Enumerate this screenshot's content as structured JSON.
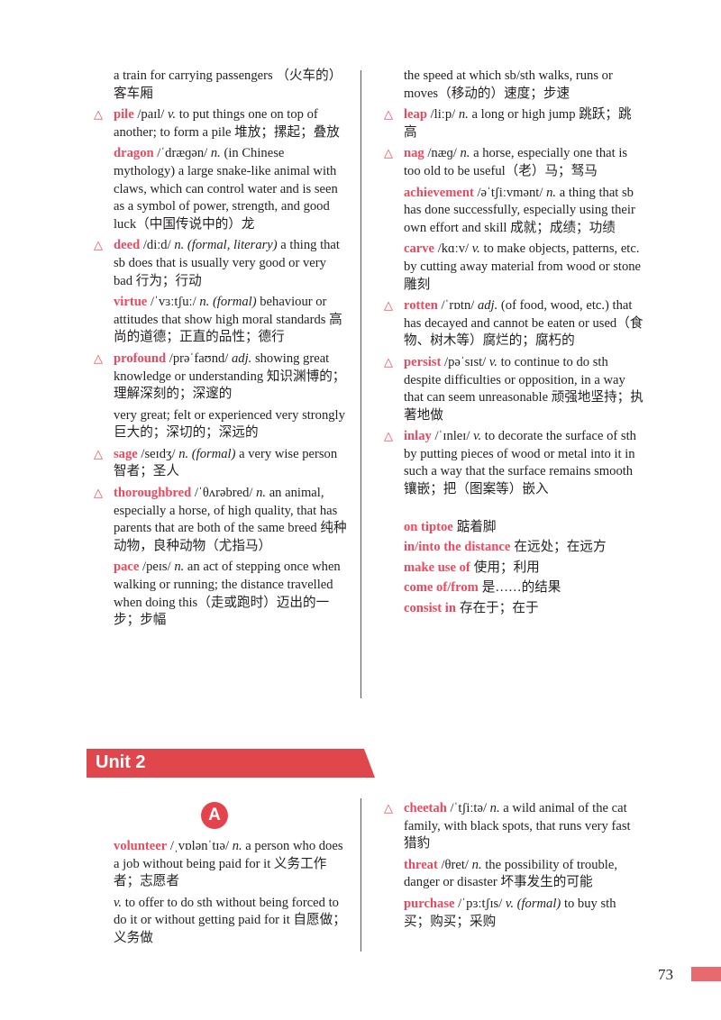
{
  "top_left": {
    "cont": "a train for carrying passengers （火车的）客车厢",
    "entries": [
      {
        "hw": "pile",
        "pron": "/paɪl/",
        "pos": "v.",
        "def": "to put things one on top of another; to form a pile 堆放；摞起；叠放"
      },
      {
        "hw": "dragon",
        "pron": "/ˈdræɡən/",
        "pos": "n.",
        "def": "(in Chinese mythology) a large snake-like animal with claws, which can control water and is seen as a symbol of power, strength, and good luck（中国传说中的）龙"
      },
      {
        "hw": "deed",
        "pron": "/diːd/",
        "pos": "n.",
        "reg": "(formal, literary)",
        "def": "a thing that sb does that is usually very good or very bad 行为；行动"
      },
      {
        "hw": "virtue",
        "pron": "/ˈvɜːtʃuː/",
        "pos": "n.",
        "reg": "(formal)",
        "def": "behaviour or attitudes that show high moral standards 高尚的道德；正直的品性；德行"
      },
      {
        "hw": "profound",
        "pron": "/prəˈfaʊnd/",
        "pos": "adj.",
        "def": "showing great knowledge or understanding 知识渊博的；理解深刻的；深邃的",
        "def2": "very great; felt or experienced very strongly 巨大的；深切的；深远的"
      },
      {
        "hw": "sage",
        "pron": "/seɪdʒ/",
        "pos": "n.",
        "reg": "(formal)",
        "def": "a very wise person 智者；圣人"
      },
      {
        "hw": "thoroughbred",
        "pron": "/ˈθʌrəbred/",
        "pos": "n.",
        "def": "an animal, especially a horse, of high quality, that has parents that are both of the same breed 纯种动物，良种动物（尤指马）"
      },
      {
        "hw": "pace",
        "pron": "/peɪs/",
        "pos": "n.",
        "def": "an act of stepping once when walking or running; the distance travelled when doing this（走或跑时）迈出的一步；步幅"
      }
    ]
  },
  "top_right": {
    "cont": "the speed at which sb/sth walks, runs or moves（移动的）速度；步速",
    "entries": [
      {
        "hw": "leap",
        "pron": "/liːp/",
        "pos": "n.",
        "def": "a long or high jump 跳跃；跳高"
      },
      {
        "hw": "nag",
        "pron": "/næɡ/",
        "pos": "n.",
        "def": "a horse, especially one that is too old to be useful（老）马；驽马"
      },
      {
        "hw": "achievement",
        "pron": "/əˈtʃiːvmənt/",
        "pos": "n.",
        "def": "a thing that sb has done successfully, especially using their own effort and skill 成就；成绩；功绩"
      },
      {
        "hw": "carve",
        "pron": "/kɑːv/",
        "pos": "v.",
        "def": "to make objects, patterns, etc. by cutting away material from wood or stone 雕刻"
      },
      {
        "hw": "rotten",
        "pron": "/ˈrɒtn/",
        "pos": "adj.",
        "def": "(of food, wood, etc.) that has decayed and cannot be eaten or used（食物、树木等）腐烂的；腐朽的"
      },
      {
        "hw": "persist",
        "pron": "/pəˈsɪst/",
        "pos": "v.",
        "def": "to continue to do sth despite difficulties or opposition, in a way that can seem unreasonable 顽强地坚持；执著地做"
      },
      {
        "hw": "inlay",
        "pron": "/ˈɪnleɪ/",
        "pos": "v.",
        "def": "to decorate the surface of sth by putting pieces of wood or metal into it in such a way that the surface remains smooth 镶嵌；把（图案等）嵌入"
      }
    ],
    "phrases": [
      {
        "hw": "on tiptoe",
        "def": "踮着脚"
      },
      {
        "hw": "in/into the distance",
        "def": "在远处；在远方"
      },
      {
        "hw": "make use of",
        "def": "使用；利用"
      },
      {
        "hw": "come of/from",
        "def": "是……的结果"
      },
      {
        "hw": "consist in",
        "def": "存在于；在于"
      }
    ]
  },
  "unit": {
    "title": "Unit 2",
    "section": "A"
  },
  "bottom_left": {
    "entries": [
      {
        "hw": "volunteer",
        "pron": "/ˌvɒlənˈtɪə/",
        "pos": "n.",
        "def": "a person who does a job without being paid for it 义务工作者；志愿者",
        "pos2": "v.",
        "def2": "to offer to do sth without being forced to do it or without getting paid for it 自愿做；义务做"
      }
    ]
  },
  "bottom_right": {
    "entries": [
      {
        "hw": "cheetah",
        "pron": "/ˈtʃiːtə/",
        "pos": "n.",
        "def": "a wild animal of the cat family, with black spots, that runs very fast 猎豹"
      },
      {
        "hw": "threat",
        "pron": "/θret/",
        "pos": "n.",
        "def": "the possibility of trouble, danger or disaster 坏事发生的可能"
      },
      {
        "hw": "purchase",
        "pron": "/ˈpɜːtʃɪs/",
        "pos": "v.",
        "reg": "(formal)",
        "def": "to buy sth 买；购买；采购"
      }
    ]
  },
  "page": {
    "number": "73"
  },
  "colors": {
    "headword": "#e84a5f",
    "banner": "#e0474c",
    "tab": "#e86a6e"
  }
}
